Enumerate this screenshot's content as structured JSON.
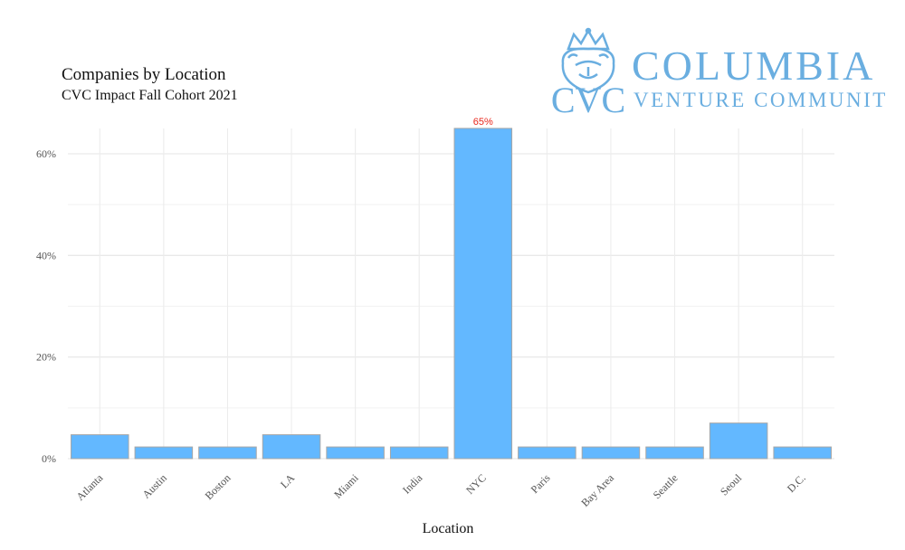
{
  "chart_data": {
    "type": "bar",
    "title": "Companies by Location",
    "subtitle": "CVC Impact Fall Cohort 2021",
    "xlabel": "Location",
    "ylabel": "",
    "categories": [
      "Atlanta",
      "Austin",
      "Boston",
      "LA",
      "Miami",
      "India",
      "NYC",
      "Paris",
      "Bay Area",
      "Seattle",
      "Seoul",
      "D.C."
    ],
    "values": [
      4.7,
      2.3,
      2.3,
      4.7,
      2.3,
      2.3,
      65,
      2.3,
      2.3,
      2.3,
      7.0,
      2.3
    ],
    "ylim": [
      0,
      68
    ],
    "yticks": [
      0,
      20,
      40,
      60
    ],
    "ytick_labels": [
      "0%",
      "20%",
      "40%",
      "60%"
    ],
    "data_labels": [
      {
        "category": "NYC",
        "text": "65%"
      }
    ],
    "grid": true,
    "bar_color": "#63b8ff",
    "bar_stroke": "#a6a6a6",
    "data_label_color": "#e8261b"
  },
  "logo": {
    "line1": "COLUMBIA",
    "line2": "VENTURE COMMUNITY",
    "monogram": "CVC",
    "color": "#6aaee0"
  }
}
